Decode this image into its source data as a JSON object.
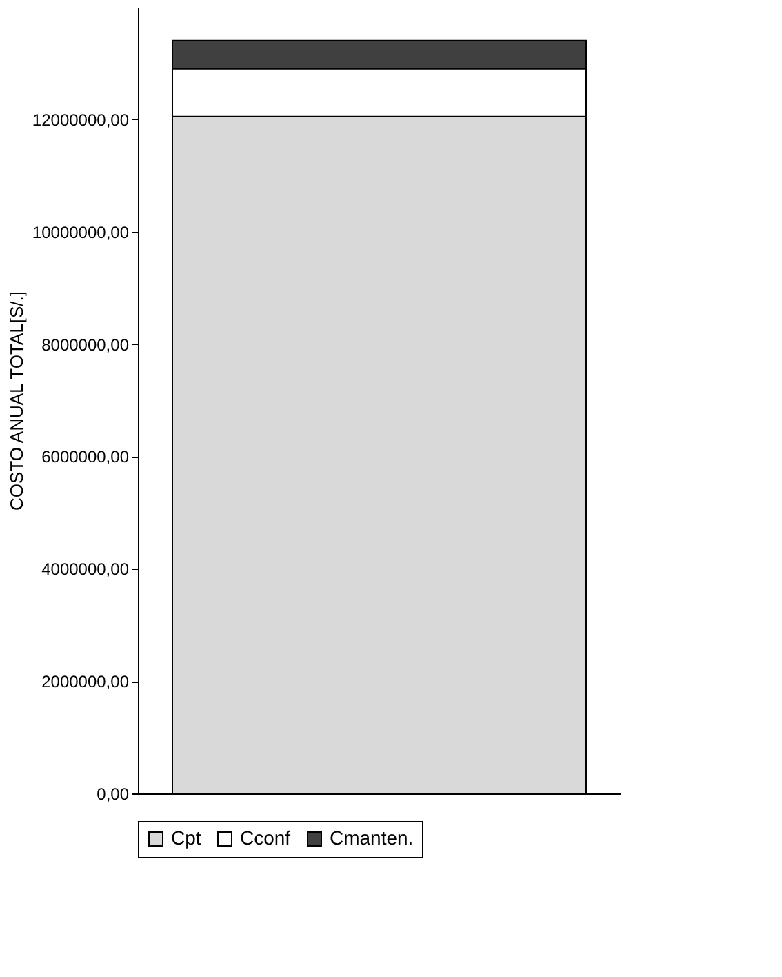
{
  "chart_data": {
    "type": "bar",
    "ylabel": "COSTO ANUAL TOTAL[S/.]",
    "categories": [
      null
    ],
    "stacked": true,
    "series": [
      {
        "name": "Cpt",
        "color": "#d9d9d9",
        "values": [
          12050000
        ]
      },
      {
        "name": "Cconf",
        "color": "#ffffff",
        "values": [
          850000
        ]
      },
      {
        "name": "Cmanten.",
        "color": "#404040",
        "values": [
          500000
        ]
      }
    ],
    "ylim": [
      0,
      14000000
    ],
    "yticks": [
      {
        "value": 0,
        "label": "0,00"
      },
      {
        "value": 2000000,
        "label": "2000000,00"
      },
      {
        "value": 4000000,
        "label": "4000000,00"
      },
      {
        "value": 6000000,
        "label": "6000000,00"
      },
      {
        "value": 8000000,
        "label": "8000000,00"
      },
      {
        "value": 10000000,
        "label": "10000000,00"
      },
      {
        "value": 12000000,
        "label": "12000000,00"
      }
    ],
    "grid": false,
    "legend": "bottom"
  }
}
